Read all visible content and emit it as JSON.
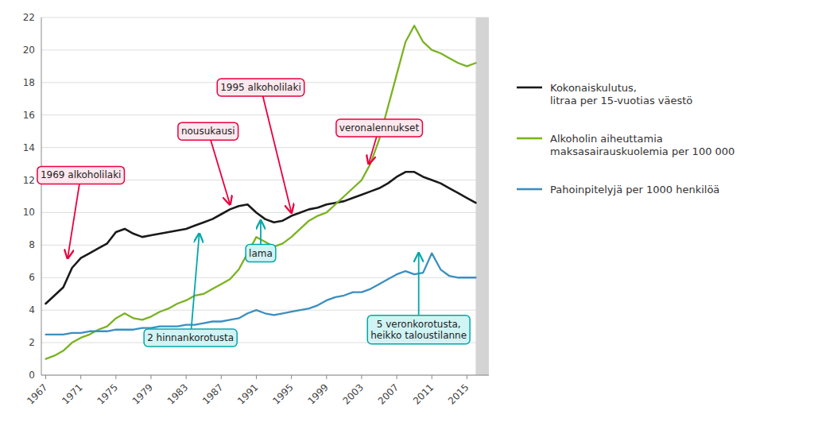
{
  "chart_data": {
    "type": "line",
    "x": [
      1967,
      1968,
      1969,
      1970,
      1971,
      1972,
      1973,
      1974,
      1975,
      1976,
      1977,
      1978,
      1979,
      1980,
      1981,
      1982,
      1983,
      1984,
      1985,
      1986,
      1987,
      1988,
      1989,
      1990,
      1991,
      1992,
      1993,
      1994,
      1995,
      1996,
      1997,
      1998,
      1999,
      2000,
      2001,
      2002,
      2003,
      2004,
      2005,
      2006,
      2007,
      2008,
      2009,
      2010,
      2011,
      2012,
      2013,
      2014,
      2015,
      2016
    ],
    "series": [
      {
        "name": "Kokonaiskulutus,\nlitraa per 15-vuotias väestö",
        "color": "#1a1a1a",
        "values": [
          4.4,
          4.9,
          5.4,
          6.6,
          7.2,
          7.5,
          7.8,
          8.1,
          8.8,
          9.0,
          8.7,
          8.5,
          8.6,
          8.7,
          8.8,
          8.9,
          9.0,
          9.2,
          9.4,
          9.6,
          9.9,
          10.2,
          10.4,
          10.5,
          10.0,
          9.6,
          9.4,
          9.5,
          9.8,
          10.0,
          10.2,
          10.3,
          10.5,
          10.6,
          10.7,
          10.9,
          11.1,
          11.3,
          11.5,
          11.8,
          12.2,
          12.5,
          12.5,
          12.2,
          12.0,
          11.8,
          11.5,
          11.2,
          10.9,
          10.6
        ]
      },
      {
        "name": "Alkoholin aiheuttamia\nmaksasairauskuolemia per 100 000",
        "color": "#7ab320",
        "values": [
          1.0,
          1.2,
          1.5,
          2.0,
          2.3,
          2.5,
          2.8,
          3.0,
          3.5,
          3.8,
          3.5,
          3.4,
          3.6,
          3.9,
          4.1,
          4.4,
          4.6,
          4.9,
          5.0,
          5.3,
          5.6,
          5.9,
          6.5,
          7.5,
          8.5,
          8.2,
          7.9,
          8.1,
          8.5,
          9.0,
          9.5,
          9.8,
          10.0,
          10.5,
          11.0,
          11.5,
          12.0,
          13.0,
          14.5,
          16.5,
          18.5,
          20.5,
          21.5,
          20.5,
          20.0,
          19.8,
          19.5,
          19.2,
          19.0,
          19.2
        ]
      },
      {
        "name": "Pahoinpitelyjä per 1000 henkilöä",
        "color": "#3a8fc0",
        "values": [
          2.5,
          2.5,
          2.5,
          2.6,
          2.6,
          2.7,
          2.7,
          2.7,
          2.8,
          2.8,
          2.8,
          2.9,
          2.9,
          3.0,
          3.0,
          3.0,
          3.1,
          3.1,
          3.2,
          3.3,
          3.3,
          3.4,
          3.5,
          3.8,
          4.0,
          3.8,
          3.7,
          3.8,
          3.9,
          4.0,
          4.1,
          4.3,
          4.6,
          4.8,
          4.9,
          5.1,
          5.1,
          5.3,
          5.6,
          5.9,
          6.2,
          6.4,
          6.2,
          6.3,
          7.5,
          6.5,
          6.1,
          6.0,
          6.0,
          6.0
        ]
      }
    ],
    "xlim": [
      1966.5,
      2017.5
    ],
    "xticks": [
      1967,
      1971,
      1975,
      1979,
      1983,
      1987,
      1991,
      1995,
      1999,
      2003,
      2007,
      2011,
      2015
    ],
    "ylim": [
      0,
      22
    ],
    "yticks": [
      0,
      2,
      4,
      6,
      8,
      10,
      12,
      14,
      16,
      18,
      20,
      22
    ],
    "grid": true,
    "legend": "right",
    "shaded_range": [
      2016,
      2017.5
    ],
    "annotations": [
      {
        "text": "1969 alkoholilaki",
        "x": 1969.5,
        "y": 7.2,
        "text_x": 1971.0,
        "text_y": 12.3,
        "color": "#e8003d",
        "fill": "#fce8ee"
      },
      {
        "text": "nousukausi",
        "x": 1988.0,
        "y": 10.5,
        "text_x": 1985.5,
        "text_y": 15.0,
        "color": "#e8003d",
        "fill": "#fce8ee"
      },
      {
        "text": "1995 alkoholilaki",
        "x": 1995.0,
        "y": 10.0,
        "text_x": 1991.5,
        "text_y": 17.7,
        "color": "#e8003d",
        "fill": "#fce8ee"
      },
      {
        "text": "veronalennukset",
        "x": 2003.8,
        "y": 13.0,
        "text_x": 2005.0,
        "text_y": 15.2,
        "color": "#e8003d",
        "fill": "#fce8ee"
      },
      {
        "text": "lama",
        "x": 1991.5,
        "y": 9.5,
        "text_x": 1991.5,
        "text_y": 7.5,
        "color": "#00a8a8",
        "fill": "#d0f4f4"
      },
      {
        "text": "2 hinnankorotusta",
        "x": 1984.5,
        "y": 8.7,
        "text_x": 1983.5,
        "text_y": 2.3,
        "color": "#00a8a8",
        "fill": "#d0f4f4"
      },
      {
        "text": "5 veronkorotusta,\nheikko taloustilanne",
        "x": 2009.5,
        "y": 7.5,
        "text_x": 2009.5,
        "text_y": 2.8,
        "color": "#00a8a8",
        "fill": "#d0f4f4"
      }
    ]
  }
}
